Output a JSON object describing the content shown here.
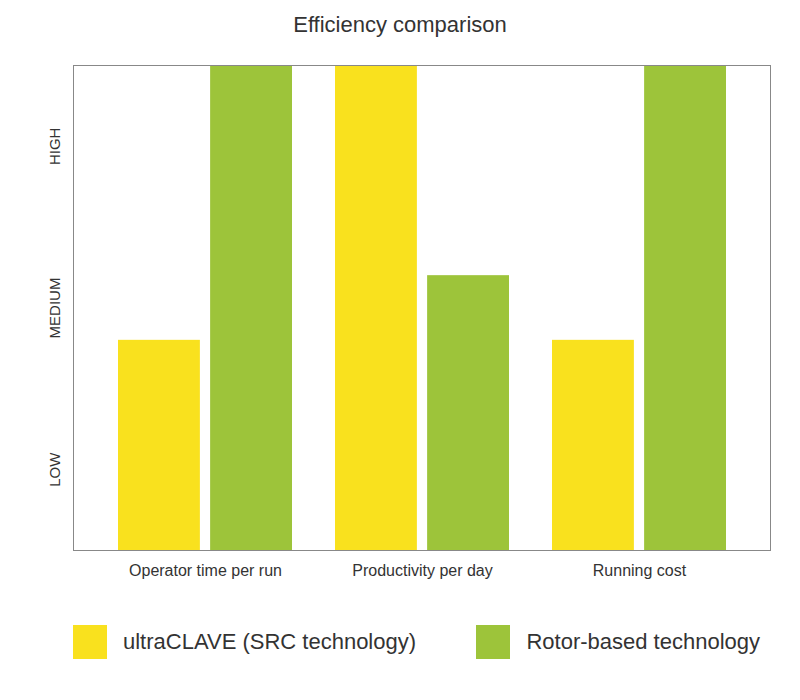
{
  "chart_data": {
    "type": "bar",
    "title": "Efficiency comparison",
    "categories": [
      "Operator time per run",
      "Productivity per day",
      "Running cost"
    ],
    "series": [
      {
        "name": "ultraCLAVE (SRC technology)",
        "color": "#f9e11e",
        "values": [
          1.3,
          3,
          1.3
        ]
      },
      {
        "name": "Rotor-based technology",
        "color": "#9dc43a",
        "values": [
          3,
          1.7,
          3
        ]
      }
    ],
    "ylim": [
      0,
      3
    ],
    "yticks": [
      {
        "value": 0.5,
        "label": "LOW"
      },
      {
        "value": 1.5,
        "label": "MEDIUM"
      },
      {
        "value": 2.5,
        "label": "HIGH"
      }
    ],
    "grid": false,
    "legend": "bottom"
  }
}
